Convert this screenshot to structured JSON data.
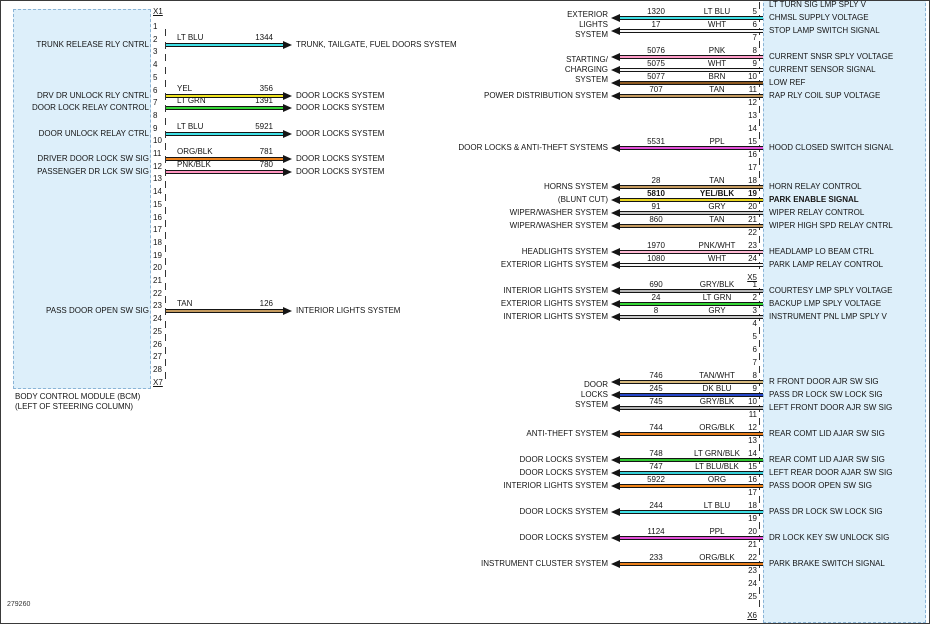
{
  "footer": {
    "code": "279260"
  },
  "diagram_colors": {
    "module_fill": "#ddeffa",
    "wire_outline": "#151515"
  },
  "wire_colors": {
    "LT BLU": "#3fe0e6",
    "LT BLU/BLK": "#35cfd8",
    "YEL": "#f0e422",
    "YEL/BLK": "#e8d41e",
    "LT GRN": "#37d837",
    "LT GRN/BLK": "#2fc52f",
    "ORG": "#f08418",
    "ORG/BLK": "#ea801c",
    "PNK": "#ff9cc8",
    "PNK/BLK": "#ff94c0",
    "PNK/WHT": "#ffb9d4",
    "TAN": "#c49a5f",
    "TAN/WHT": "#d7b97e",
    "WHT": "#f7f7f7",
    "BRN": "#8e5a22",
    "PPL": "#e24fd8",
    "GRY": "#c9c9c9",
    "GRY/BLK": "#b5b5b5",
    "DK BLU": "#2646c8"
  },
  "bcm": {
    "title_lines": [
      "BODY CONTROL MODULE (BCM)",
      "(LEFT OF STEERING COLUMN)"
    ],
    "top_connector": "X1",
    "bottom_connector": "X7",
    "pins": [
      "1",
      "2",
      "3",
      "4",
      "5",
      "6",
      "7",
      "8",
      "9",
      "10",
      "11",
      "12",
      "13",
      "14",
      "15",
      "16",
      "17",
      "18",
      "19",
      "20",
      "21",
      "22",
      "23",
      "24",
      "25",
      "26",
      "27",
      "28"
    ],
    "pin_labels": {
      "2": "TRUNK RELEASE RLY CNTRL",
      "6": "DRV DR UNLOCK RLY CNTRL",
      "7": "DOOR LOCK RELAY CONTROL",
      "9": "DOOR UNLOCK RELAY CTRL",
      "11": "DRIVER DOOR LOCK SW SIG",
      "12": "PASSENGER DR LCK SW SIG",
      "23": "PASS DOOR OPEN SW SIG"
    },
    "wires": [
      {
        "pin": 2,
        "color": "LT BLU",
        "circuit": "1344",
        "target": "TRUNK, TAILGATE, FUEL DOORS SYSTEM"
      },
      {
        "pin": 6,
        "color": "YEL",
        "circuit": "356",
        "target": "DOOR LOCKS SYSTEM"
      },
      {
        "pin": 7,
        "color": "LT GRN",
        "circuit": "1391",
        "target": "DOOR LOCKS SYSTEM"
      },
      {
        "pin": 9,
        "color": "LT BLU",
        "circuit": "5921",
        "target": "DOOR LOCKS SYSTEM"
      },
      {
        "pin": 11,
        "color": "ORG/BLK",
        "circuit": "781",
        "target": "DOOR LOCKS SYSTEM"
      },
      {
        "pin": 12,
        "color": "PNK/BLK",
        "circuit": "780",
        "target": "DOOR LOCKS SYSTEM"
      },
      {
        "pin": 23,
        "color": "TAN",
        "circuit": "126",
        "target": "INTERIOR LIGHTS SYSTEM"
      }
    ]
  },
  "right_connector": {
    "rows": [
      {
        "pin": "4",
        "label": "LT TURN SIG LMP SPLY V"
      },
      {
        "pin": "5",
        "label": "CHMSL SUPPLY VOLTAGE",
        "circuit": "1320",
        "color": "LT BLU"
      },
      {
        "pin": "6",
        "label": "STOP LAMP SWITCH SIGNAL",
        "circuit": "17",
        "color": "WHT"
      },
      {
        "pin": "7"
      },
      {
        "pin": "8",
        "label": "CURRENT SNSR SPLY VOLTAGE",
        "circuit": "5076",
        "color": "PNK"
      },
      {
        "pin": "9",
        "label": "CURRENT SENSOR SIGNAL",
        "circuit": "5075",
        "color": "WHT"
      },
      {
        "pin": "10",
        "label": "LOW REF",
        "circuit": "5077",
        "color": "BRN"
      },
      {
        "pin": "11",
        "label": "RAP RLY COIL SUP VOLTAGE",
        "circuit": "707",
        "color": "TAN"
      },
      {
        "pin": "12"
      },
      {
        "pin": "13"
      },
      {
        "pin": "14"
      },
      {
        "pin": "15",
        "label": "HOOD CLOSED SWITCH SIGNAL",
        "circuit": "5531",
        "color": "PPL"
      },
      {
        "pin": "16"
      },
      {
        "pin": "17"
      },
      {
        "pin": "18",
        "label": "HORN RELAY CONTROL",
        "circuit": "28",
        "color": "TAN"
      },
      {
        "pin": "19",
        "label": "PARK ENABLE SIGNAL",
        "circuit": "5810",
        "color": "YEL/BLK",
        "bold": true
      },
      {
        "pin": "20",
        "label": "WIPER RELAY CONTROL",
        "circuit": "91",
        "color": "GRY"
      },
      {
        "pin": "21",
        "label": "WIPER HIGH SPD RELAY CNTRL",
        "circuit": "860",
        "color": "TAN"
      },
      {
        "pin": "22"
      },
      {
        "pin": "23",
        "label": "HEADLAMP LO BEAM CTRL",
        "circuit": "1970",
        "color": "PNK/WHT"
      },
      {
        "pin": "24",
        "label": "PARK LAMP RELAY CONTROL",
        "circuit": "1080",
        "color": "WHT"
      },
      {
        "marker": "X5"
      },
      {
        "pin": "1",
        "label": "COURTESY LMP SPLY VOLTAGE",
        "circuit": "690",
        "color": "GRY/BLK"
      },
      {
        "pin": "2",
        "label": "BACKUP LMP SPLY VOLTAGE",
        "circuit": "24",
        "color": "LT GRN"
      },
      {
        "pin": "3",
        "label": "INSTRUMENT PNL LMP SPLY V",
        "circuit": "8",
        "color": "GRY"
      },
      {
        "pin": "4"
      },
      {
        "pin": "5"
      },
      {
        "pin": "6"
      },
      {
        "pin": "7"
      },
      {
        "pin": "8",
        "label": "R FRONT DOOR AJR SW SIG",
        "circuit": "746",
        "color": "TAN/WHT"
      },
      {
        "pin": "9",
        "label": "PASS DR LOCK SW LOCK SIG",
        "circuit": "245",
        "color": "DK BLU"
      },
      {
        "pin": "10",
        "label": "LEFT FRONT DOOR AJR SW SIG",
        "circuit": "745",
        "color": "GRY/BLK"
      },
      {
        "pin": "11"
      },
      {
        "pin": "12",
        "label": "REAR COMT LID AJAR SW SIG",
        "circuit": "744",
        "color": "ORG/BLK"
      },
      {
        "pin": "13"
      },
      {
        "pin": "14",
        "label": "REAR COMT LID AJAR SW SIG",
        "circuit": "748",
        "color": "LT GRN/BLK"
      },
      {
        "pin": "15",
        "label": "LEFT REAR DOOR AJAR SW SIG",
        "circuit": "747",
        "color": "LT BLU/BLK"
      },
      {
        "pin": "16",
        "label": "PASS DOOR OPEN SW SIG",
        "circuit": "5922",
        "color": "ORG"
      },
      {
        "pin": "17"
      },
      {
        "pin": "18",
        "label": "PASS DR LOCK SW LOCK SIG",
        "circuit": "244",
        "color": "LT BLU"
      },
      {
        "pin": "19"
      },
      {
        "pin": "20",
        "label": "DR LOCK KEY SW UNLOCK SIG",
        "circuit": "1124",
        "color": "PPL"
      },
      {
        "pin": "21"
      },
      {
        "pin": "22",
        "label": "PARK BRAKE SWITCH SIGNAL",
        "circuit": "233",
        "color": "ORG/BLK"
      },
      {
        "pin": "23"
      },
      {
        "pin": "24"
      },
      {
        "pin": "25"
      },
      {
        "marker": "X6"
      }
    ],
    "sources": [
      {
        "rows": [
          1,
          2
        ],
        "lines": [
          "EXTERIOR",
          "LIGHTS",
          "SYSTEM"
        ]
      },
      {
        "rows": [
          4,
          5,
          6
        ],
        "lines": [
          "STARTING/",
          "CHARGING",
          "SYSTEM"
        ]
      },
      {
        "rows": [
          7
        ],
        "lines": [
          "POWER DISTRIBUTION SYSTEM"
        ]
      },
      {
        "rows": [
          11
        ],
        "lines": [
          "DOOR LOCKS & ANTI-THEFT SYSTEMS"
        ]
      },
      {
        "rows": [
          14
        ],
        "lines": [
          "HORNS SYSTEM"
        ]
      },
      {
        "rows": [
          15
        ],
        "lines": [
          "(BLUNT CUT)"
        ]
      },
      {
        "rows": [
          16
        ],
        "lines": [
          "WIPER/WASHER SYSTEM"
        ]
      },
      {
        "rows": [
          17
        ],
        "lines": [
          "WIPER/WASHER SYSTEM"
        ]
      },
      {
        "rows": [
          19
        ],
        "lines": [
          "HEADLIGHTS SYSTEM"
        ]
      },
      {
        "rows": [
          20
        ],
        "lines": [
          "EXTERIOR LIGHTS SYSTEM"
        ]
      },
      {
        "rows": [
          22
        ],
        "lines": [
          "INTERIOR LIGHTS SYSTEM"
        ]
      },
      {
        "rows": [
          23
        ],
        "lines": [
          "EXTERIOR LIGHTS SYSTEM"
        ]
      },
      {
        "rows": [
          24
        ],
        "lines": [
          "INTERIOR LIGHTS SYSTEM"
        ]
      },
      {
        "rows": [
          29,
          30,
          31
        ],
        "lines": [
          "DOOR",
          "LOCKS",
          "SYSTEM"
        ]
      },
      {
        "rows": [
          33
        ],
        "lines": [
          "ANTI-THEFT SYSTEM"
        ]
      },
      {
        "rows": [
          35
        ],
        "lines": [
          "DOOR LOCKS SYSTEM"
        ]
      },
      {
        "rows": [
          36
        ],
        "lines": [
          "DOOR LOCKS SYSTEM"
        ]
      },
      {
        "rows": [
          37
        ],
        "lines": [
          "INTERIOR LIGHTS SYSTEM"
        ]
      },
      {
        "rows": [
          39
        ],
        "lines": [
          "DOOR LOCKS SYSTEM"
        ]
      },
      {
        "rows": [
          41
        ],
        "lines": [
          "DOOR LOCKS SYSTEM"
        ]
      },
      {
        "rows": [
          43
        ],
        "lines": [
          "INSTRUMENT CLUSTER SYSTEM"
        ]
      }
    ]
  }
}
